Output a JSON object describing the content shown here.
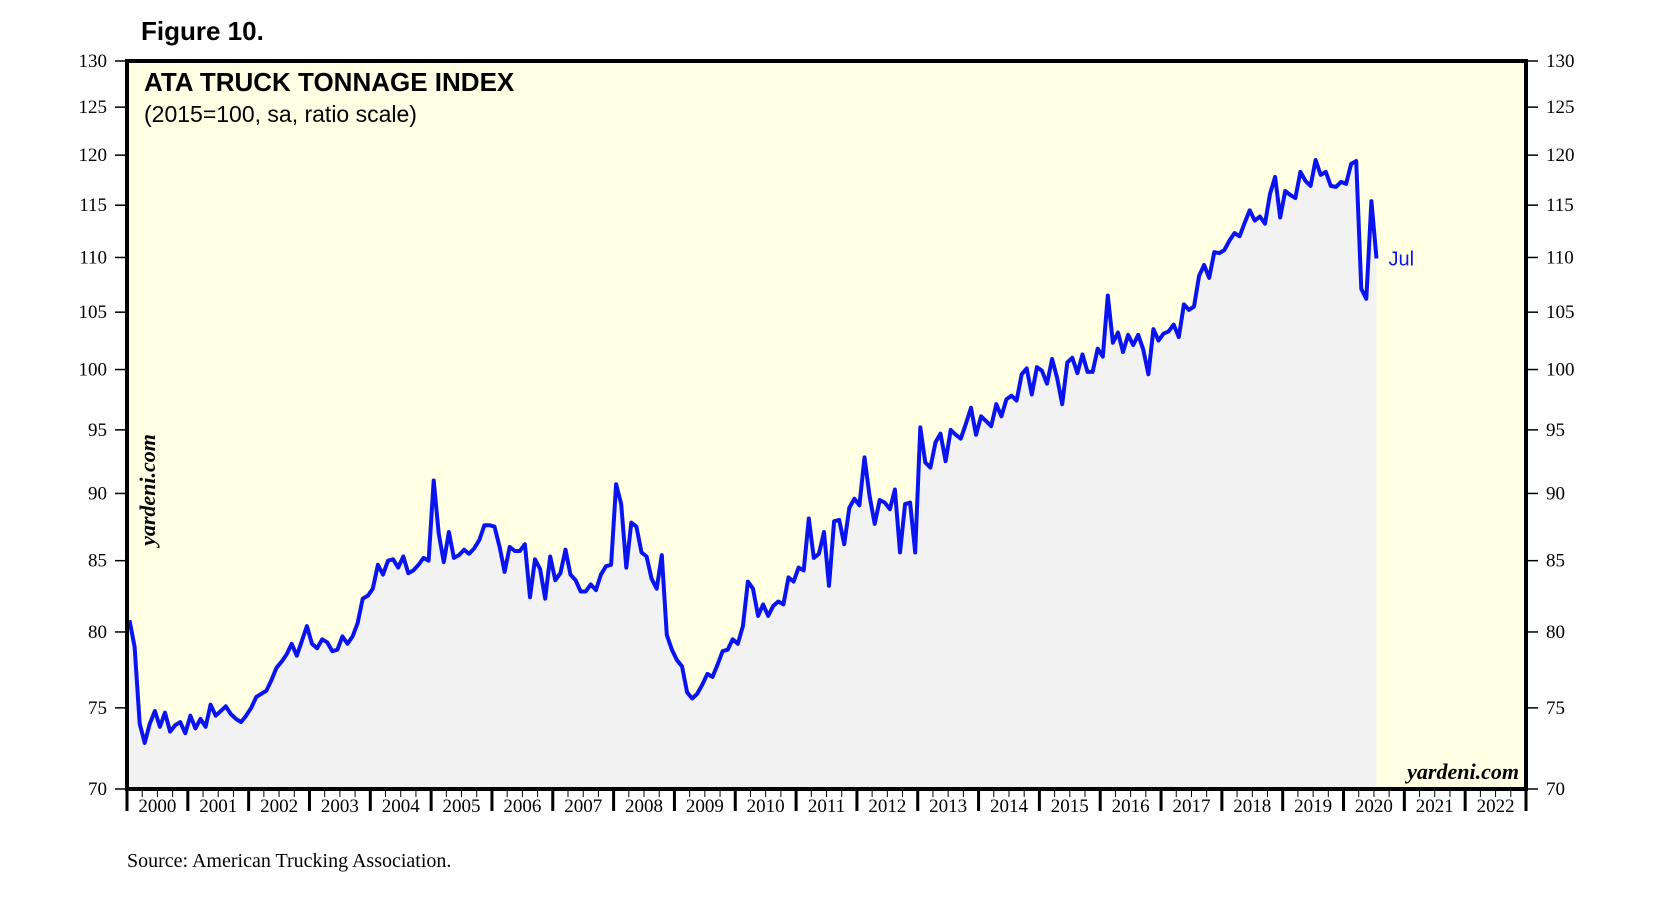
{
  "figure_label": "Figure 10.",
  "source_note": "Source: American Trucking Association.",
  "colors": {
    "plot_background": "#ffffe4",
    "area_fill": "#f2f2f2",
    "series_line": "#0a14f0",
    "frame": "#000000"
  },
  "chart_data": {
    "type": "line",
    "title": "ATA TRUCK TONNAGE INDEX",
    "subtitle": "(2015=100, sa, ratio scale)",
    "watermark_left": "yardeni.com",
    "watermark_bottom": "yardeni.com",
    "y_scale": "log",
    "ylim": [
      70,
      130
    ],
    "y_ticks": [
      70,
      75,
      80,
      85,
      90,
      95,
      100,
      105,
      110,
      115,
      120,
      125,
      130
    ],
    "xlim": [
      2000.0,
      2023.0
    ],
    "x_tick_labels": [
      "2000",
      "2001",
      "2002",
      "2003",
      "2004",
      "2005",
      "2006",
      "2007",
      "2008",
      "2009",
      "2010",
      "2011",
      "2012",
      "2013",
      "2014",
      "2015",
      "2016",
      "2017",
      "2018",
      "2019",
      "2020",
      "2021",
      "2022"
    ],
    "end_label": "Jul",
    "series": [
      {
        "values_by_year": {
          "2000": [
            80.8,
            79.0,
            74.0,
            72.8,
            74.0,
            74.8,
            73.8,
            74.7,
            73.5,
            73.9,
            74.1,
            73.4
          ],
          "2001": [
            74.5,
            73.7,
            74.3,
            73.8,
            75.2,
            74.5,
            74.8,
            75.1,
            74.6,
            74.3,
            74.1,
            74.5
          ],
          "2002": [
            75.0,
            75.7,
            75.9,
            76.1,
            76.8,
            77.6,
            78.0,
            78.5,
            79.2,
            78.4,
            79.4,
            80.4
          ],
          "2003": [
            79.2,
            78.9,
            79.5,
            79.3,
            78.7,
            78.8,
            79.7,
            79.2,
            79.7,
            80.6,
            82.3,
            82.5
          ],
          "2004": [
            83.0,
            84.7,
            84.0,
            85.0,
            85.1,
            84.5,
            85.3,
            84.1,
            84.3,
            84.7,
            85.2,
            85.0
          ],
          "2005": [
            91.0,
            87.0,
            84.9,
            87.1,
            85.2,
            85.4,
            85.8,
            85.5,
            85.9,
            86.5,
            87.6,
            87.6
          ],
          "2006": [
            87.5,
            86.0,
            84.2,
            86.0,
            85.7,
            85.7,
            86.2,
            82.4,
            85.1,
            84.4,
            82.3,
            85.3
          ],
          "2007": [
            83.6,
            84.1,
            85.8,
            84.0,
            83.6,
            82.8,
            82.8,
            83.3,
            82.9,
            84.0,
            84.6,
            84.7
          ],
          "2008": [
            90.7,
            89.2,
            84.5,
            87.8,
            87.5,
            85.6,
            85.3,
            83.7,
            83.0,
            85.4,
            79.8,
            78.8
          ],
          "2009": [
            78.1,
            77.7,
            76.0,
            75.6,
            75.9,
            76.5,
            77.2,
            77.0,
            77.8,
            78.7,
            78.8,
            79.5
          ],
          "2010": [
            79.2,
            80.4,
            83.5,
            83.0,
            81.1,
            81.9,
            81.1,
            81.8,
            82.1,
            81.9,
            83.8,
            83.5
          ],
          "2011": [
            84.5,
            84.3,
            88.1,
            85.2,
            85.5,
            87.1,
            83.2,
            87.9,
            88.0,
            86.2,
            88.9,
            89.6
          ],
          "2012": [
            89.1,
            92.8,
            89.8,
            87.7,
            89.5,
            89.3,
            88.8,
            90.3,
            85.6,
            89.2,
            89.3,
            85.6
          ],
          "2013": [
            95.2,
            92.4,
            92.0,
            94.0,
            94.7,
            92.5,
            95.0,
            94.6,
            94.3,
            95.5,
            96.8,
            94.6
          ],
          "2014": [
            96.1,
            95.7,
            95.3,
            97.1,
            96.1,
            97.5,
            97.8,
            97.4,
            99.6,
            100.1,
            97.9,
            100.2
          ],
          "2015": [
            99.9,
            98.8,
            100.9,
            99.3,
            97.1,
            100.6,
            101.0,
            99.7,
            101.3,
            99.8,
            99.8,
            101.8
          ],
          "2016": [
            101.1,
            106.5,
            102.3,
            103.2,
            101.5,
            103.0,
            102.1,
            103.0,
            101.7,
            99.6,
            103.5,
            102.5
          ],
          "2017": [
            103.1,
            103.3,
            103.9,
            102.8,
            105.7,
            105.2,
            105.5,
            108.3,
            109.3,
            108.1,
            110.5,
            110.4
          ],
          "2018": [
            110.7,
            111.6,
            112.3,
            112.0,
            113.3,
            114.5,
            113.5,
            113.9,
            113.2,
            116.1,
            117.8,
            113.8
          ],
          "2019": [
            116.4,
            116.0,
            115.7,
            118.3,
            117.4,
            116.9,
            119.5,
            118.0,
            118.3,
            116.9,
            116.8,
            117.3
          ],
          "2020": [
            117.1,
            119.1,
            119.4,
            107.1,
            106.2,
            115.4,
            109.9
          ]
        }
      }
    ]
  }
}
